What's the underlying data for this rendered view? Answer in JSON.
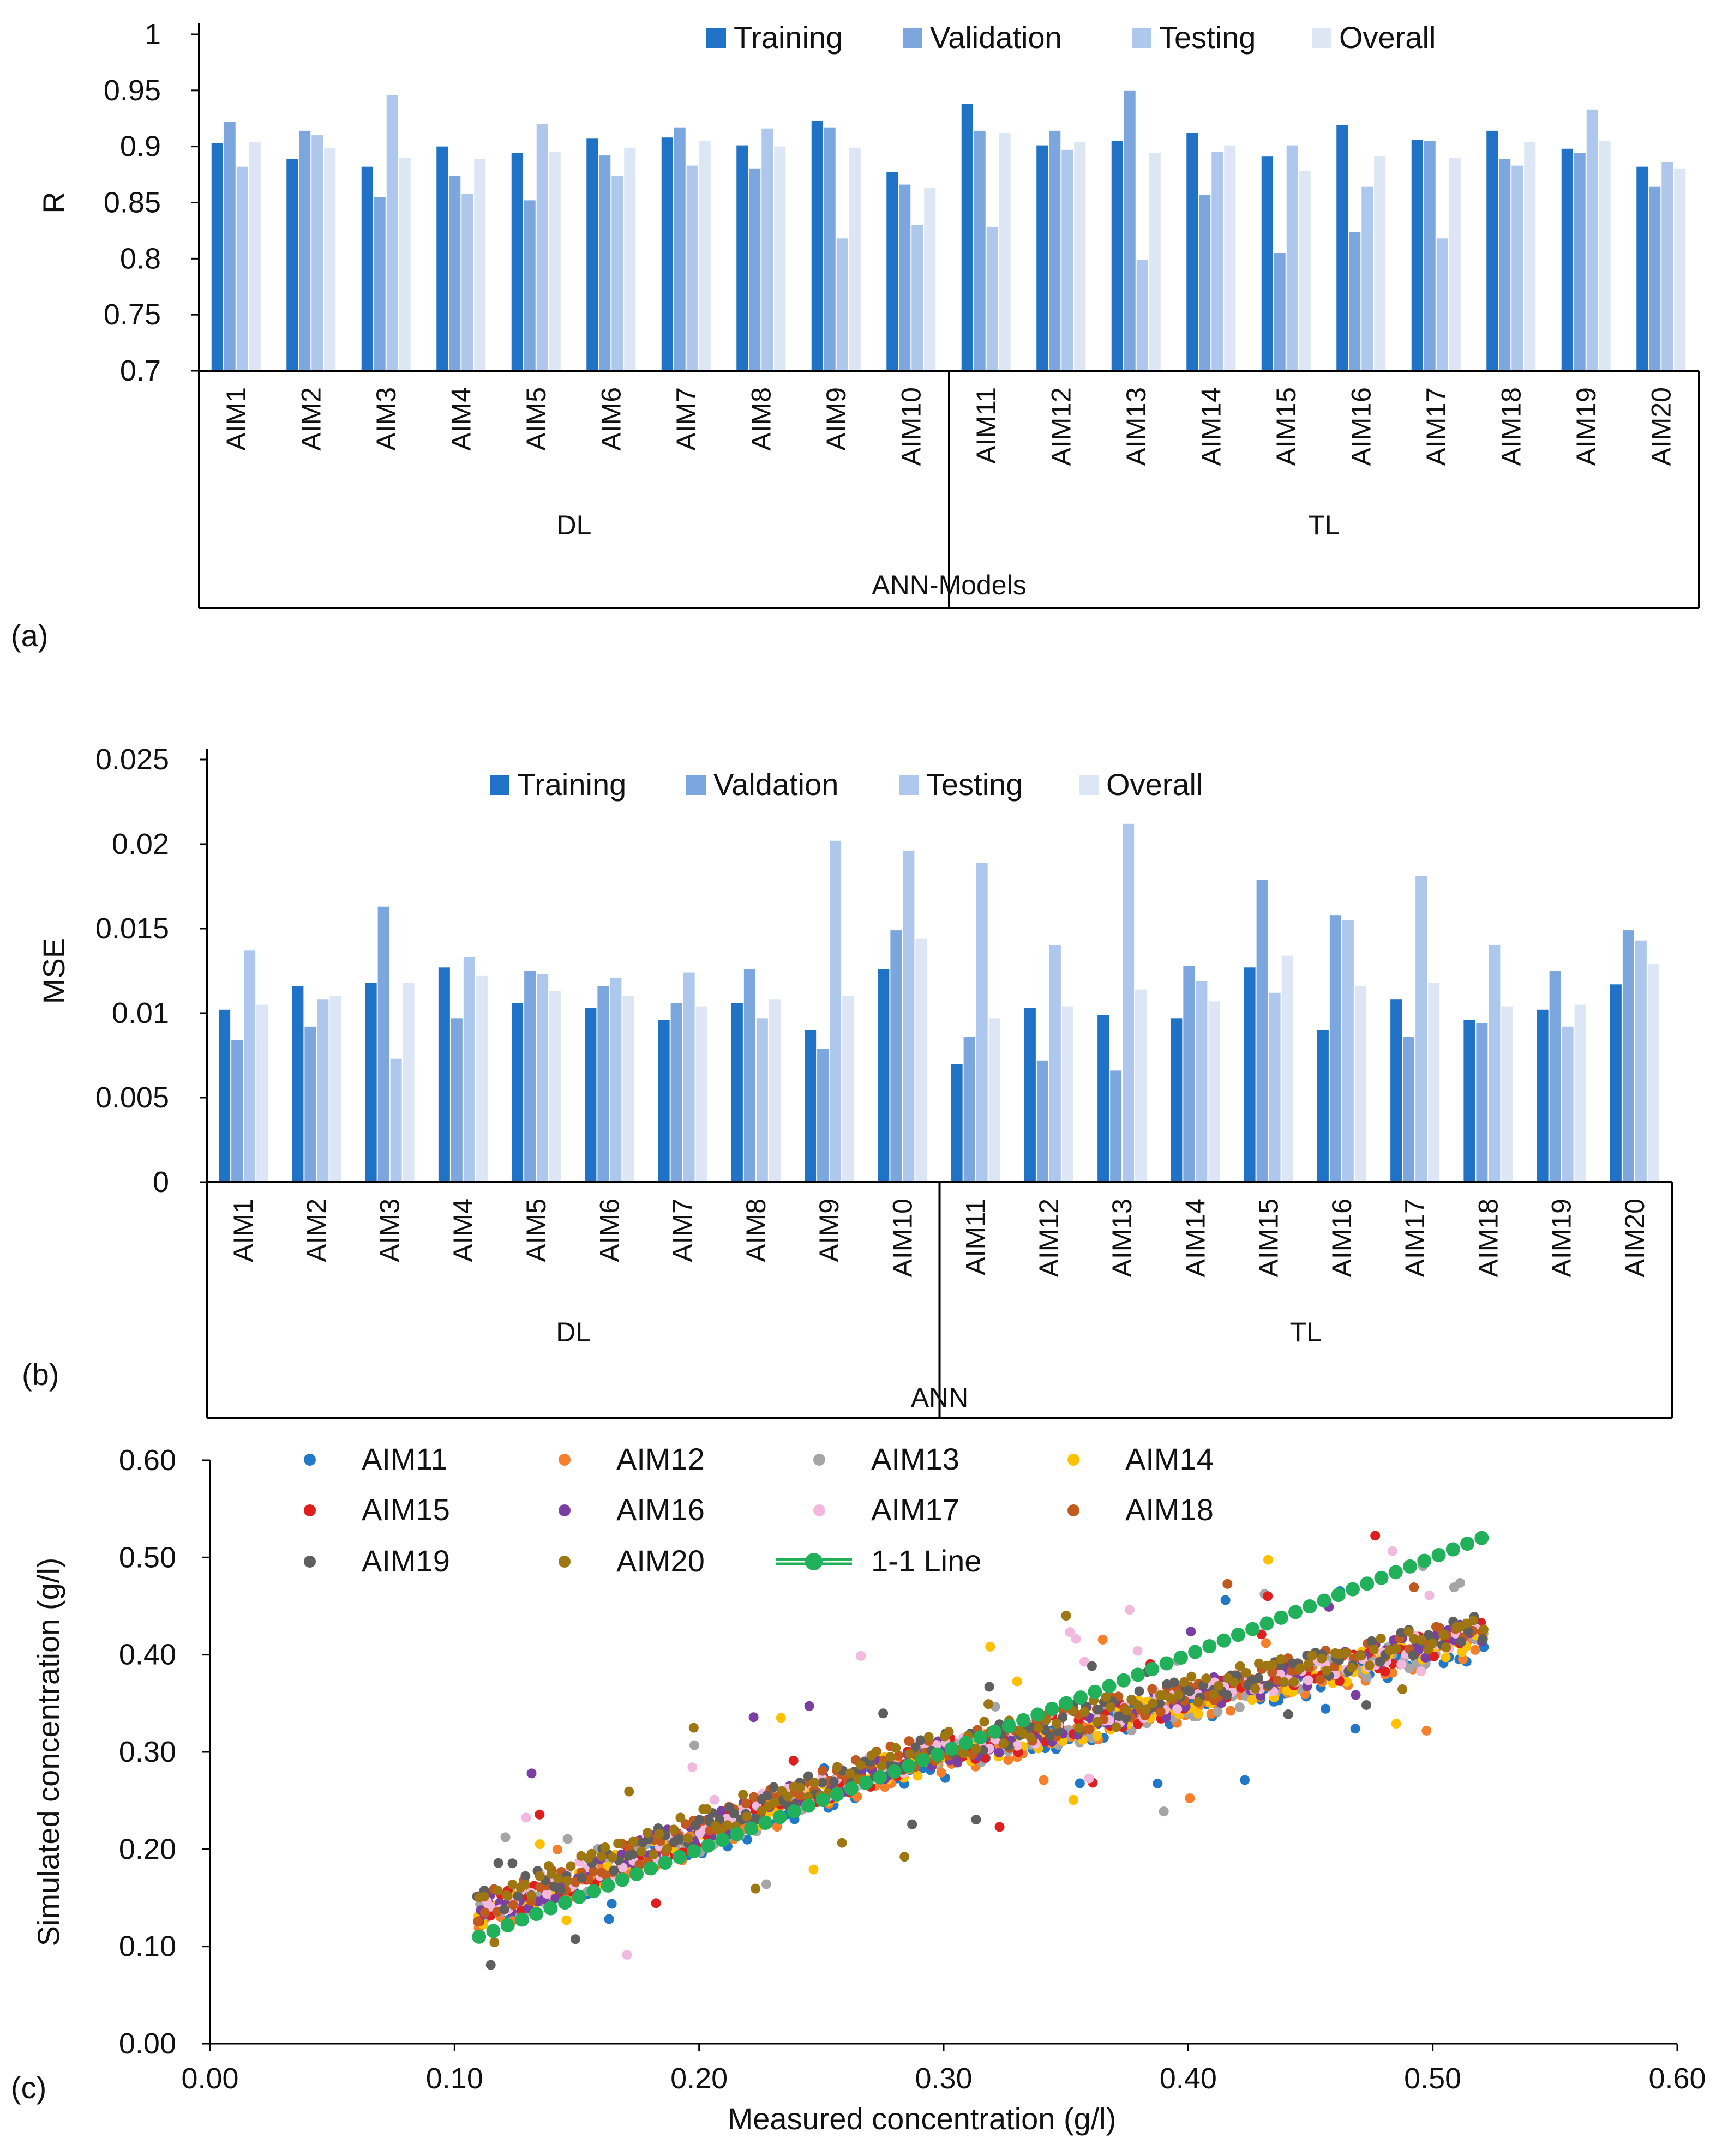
{
  "colors": {
    "training": "#2072C6",
    "validation": "#7BA7DE",
    "testing": "#ADC8EC",
    "overall": "#DCE6F4",
    "oneone": "#20B15A",
    "axis": "#000000"
  },
  "chart_data": [
    {
      "panel": "(a)",
      "type": "bar",
      "title": "",
      "ylabel": "R",
      "xlabel": "ANN-Models",
      "groups": [
        {
          "name": "DL",
          "span": [
            0,
            9
          ]
        },
        {
          "name": "TL",
          "span": [
            10,
            19
          ]
        }
      ],
      "ylim": [
        0.7,
        1
      ],
      "yticks": [
        0.7,
        0.75,
        0.8,
        0.85,
        0.9,
        0.95,
        1
      ],
      "ytick_labels": [
        "0.7",
        "0.75",
        "0.8",
        "0.85",
        "0.9",
        "0.95",
        "1"
      ],
      "grid": false,
      "legend_position": "top",
      "categories": [
        "AIM1",
        "AIM2",
        "AIM3",
        "AIM4",
        "AIM5",
        "AIM6",
        "AIM7",
        "AIM8",
        "AIM9",
        "AIM10",
        "AIM11",
        "AIM12",
        "AIM13",
        "AIM14",
        "AIM15",
        "AIM16",
        "AIM17",
        "AIM18",
        "AIM19",
        "AIM20"
      ],
      "series": [
        {
          "name": "Training",
          "values": [
            0.903,
            0.889,
            0.882,
            0.9,
            0.894,
            0.907,
            0.908,
            0.901,
            0.923,
            0.877,
            0.938,
            0.901,
            0.905,
            0.912,
            0.891,
            0.919,
            0.906,
            0.914,
            0.898,
            0.882
          ]
        },
        {
          "name": "Validation",
          "values": [
            0.922,
            0.914,
            0.855,
            0.874,
            0.852,
            0.892,
            0.917,
            0.88,
            0.917,
            0.866,
            0.914,
            0.914,
            0.95,
            0.857,
            0.805,
            0.824,
            0.905,
            0.889,
            0.894,
            0.864
          ]
        },
        {
          "name": "Testing",
          "values": [
            0.882,
            0.91,
            0.946,
            0.858,
            0.92,
            0.874,
            0.883,
            0.916,
            0.818,
            0.83,
            0.828,
            0.897,
            0.799,
            0.895,
            0.901,
            0.864,
            0.818,
            0.883,
            0.933,
            0.886
          ]
        },
        {
          "name": "Overall",
          "values": [
            0.904,
            0.899,
            0.89,
            0.889,
            0.895,
            0.899,
            0.905,
            0.9,
            0.899,
            0.863,
            0.912,
            0.904,
            0.894,
            0.901,
            0.878,
            0.891,
            0.89,
            0.904,
            0.905,
            0.88
          ]
        }
      ]
    },
    {
      "panel": "(b)",
      "type": "bar",
      "title": "",
      "ylabel": "MSE",
      "xlabel": "ANN",
      "groups": [
        {
          "name": "DL",
          "span": [
            0,
            9
          ]
        },
        {
          "name": "TL",
          "span": [
            10,
            19
          ]
        }
      ],
      "ylim": [
        0,
        0.025
      ],
      "yticks": [
        0,
        0.005,
        0.01,
        0.015,
        0.02,
        0.025
      ],
      "ytick_labels": [
        "0",
        "0.005",
        "0.01",
        "0.015",
        "0.02",
        "0.025"
      ],
      "grid": false,
      "legend_position": "top",
      "categories": [
        "AIM1",
        "AIM2",
        "AIM3",
        "AIM4",
        "AIM5",
        "AIM6",
        "AIM7",
        "AIM8",
        "AIM9",
        "AIM10",
        "AIM11",
        "AIM12",
        "AIM13",
        "AIM14",
        "AIM15",
        "AIM16",
        "AIM17",
        "AIM18",
        "AIM19",
        "AIM20"
      ],
      "series": [
        {
          "name": "Training",
          "values": [
            0.0102,
            0.0116,
            0.0118,
            0.0127,
            0.0106,
            0.0103,
            0.0096,
            0.0106,
            0.009,
            0.0126,
            0.007,
            0.0103,
            0.0099,
            0.0097,
            0.0127,
            0.009,
            0.0108,
            0.0096,
            0.0102,
            0.0117
          ]
        },
        {
          "name": "Valdation",
          "values": [
            0.0084,
            0.0092,
            0.0163,
            0.0097,
            0.0125,
            0.0116,
            0.0106,
            0.0126,
            0.0079,
            0.0149,
            0.0086,
            0.0072,
            0.0066,
            0.0128,
            0.0179,
            0.0158,
            0.0086,
            0.0094,
            0.0125,
            0.0149
          ]
        },
        {
          "name": "Testing",
          "values": [
            0.0137,
            0.0108,
            0.0073,
            0.0133,
            0.0123,
            0.0121,
            0.0124,
            0.0097,
            0.0202,
            0.0196,
            0.0189,
            0.014,
            0.0212,
            0.0119,
            0.0112,
            0.0155,
            0.0181,
            0.014,
            0.0092,
            0.0143
          ]
        },
        {
          "name": "Overall",
          "values": [
            0.0105,
            0.011,
            0.0118,
            0.0122,
            0.0113,
            0.011,
            0.0104,
            0.0108,
            0.011,
            0.0144,
            0.0097,
            0.0104,
            0.0114,
            0.0107,
            0.0134,
            0.0116,
            0.0118,
            0.0104,
            0.0105,
            0.0129
          ]
        }
      ]
    },
    {
      "panel": "(c)",
      "type": "scatter",
      "title": "",
      "xlabel": "Measured concentration (g/l)",
      "ylabel": "Simulated concentration (g/l)",
      "xlim": [
        0,
        0.6
      ],
      "ylim": [
        0,
        0.6
      ],
      "xticks": [
        0,
        0.1,
        0.2,
        0.3,
        0.4,
        0.5,
        0.6
      ],
      "yticks": [
        0,
        0.1,
        0.2,
        0.3,
        0.4,
        0.5,
        0.6
      ],
      "xtick_labels": [
        "0.00",
        "0.10",
        "0.20",
        "0.30",
        "0.40",
        "0.50",
        "0.60"
      ],
      "ytick_labels": [
        "0.00",
        "0.10",
        "0.20",
        "0.30",
        "0.40",
        "0.50",
        "0.60"
      ],
      "grid": false,
      "legend_position": "top-left",
      "x_range_measured": [
        0.11,
        0.52
      ],
      "series": [
        {
          "name": "AIM11",
          "color": "#1F78C8"
        },
        {
          "name": "AIM12",
          "color": "#F57F2A"
        },
        {
          "name": "AIM13",
          "color": "#A5A5A5"
        },
        {
          "name": "AIM14",
          "color": "#FFC000"
        },
        {
          "name": "AIM15",
          "color": "#E01E1E"
        },
        {
          "name": "AIM16",
          "color": "#7B3FA3"
        },
        {
          "name": "AIM17",
          "color": "#F2B8DE"
        },
        {
          "name": "AIM18",
          "color": "#C05A1E"
        },
        {
          "name": "AIM19",
          "color": "#5F5F5F"
        },
        {
          "name": "AIM20",
          "color": "#9E7612"
        }
      ],
      "one_to_one": {
        "name": "1-1 Line",
        "x": [
          0.11,
          0.52
        ],
        "y": [
          0.11,
          0.52
        ]
      }
    }
  ],
  "panel_labels": [
    "(a)",
    "(b)",
    "(c)"
  ]
}
